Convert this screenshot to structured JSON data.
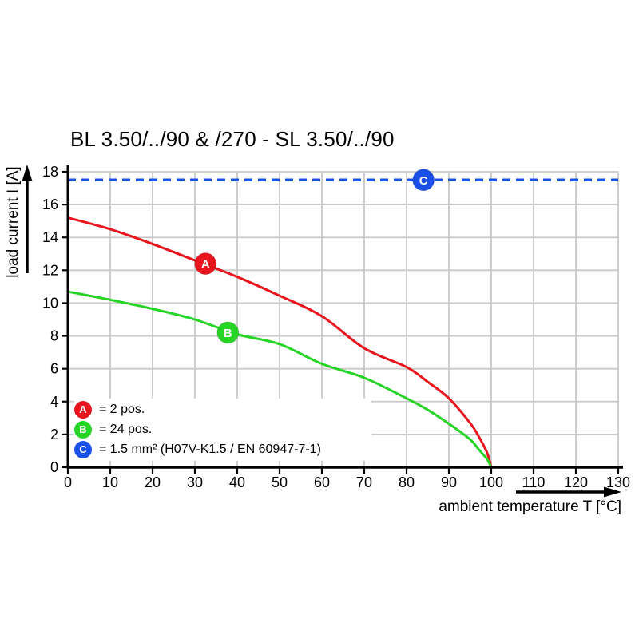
{
  "page": {
    "background": "#ffffff"
  },
  "chart_data": {
    "type": "line",
    "title": "BL 3.50/../90 & /270 - SL 3.50/../90",
    "xlabel": "ambient temperature T [°C]",
    "ylabel": "load current I [A]",
    "xlim": [
      0,
      130
    ],
    "ylim": [
      0,
      18
    ],
    "xticks": [
      0,
      10,
      20,
      30,
      40,
      50,
      60,
      70,
      80,
      90,
      100,
      110,
      120,
      130
    ],
    "yticks": [
      0,
      2,
      4,
      6,
      8,
      10,
      12,
      14,
      16,
      18
    ],
    "grid": true,
    "colors": {
      "grid": "#c9c9c9",
      "axis": "#000000",
      "red": "#e8141e",
      "green": "#26d526",
      "blue": "#1a50e8"
    },
    "series": [
      {
        "id": "A",
        "label": "2 pos.",
        "color": "#e8141e",
        "line_style": "solid",
        "x": [
          0,
          10,
          20,
          30,
          40,
          50,
          60,
          70,
          80,
          85,
          90,
          95,
          97,
          99,
          100
        ],
        "y": [
          15.2,
          14.5,
          13.6,
          12.6,
          11.6,
          10.45,
          9.2,
          7.25,
          6.1,
          5.2,
          4.2,
          2.7,
          1.9,
          0.9,
          0
        ],
        "marker": {
          "letter": "A",
          "x": 32.5,
          "y": 12.4
        }
      },
      {
        "id": "B",
        "label": "24 pos.",
        "color": "#26d526",
        "line_style": "solid",
        "x": [
          0,
          10,
          20,
          30,
          40,
          50,
          60,
          70,
          80,
          85,
          90,
          95,
          97,
          99,
          100
        ],
        "y": [
          10.7,
          10.2,
          9.65,
          9.0,
          8.1,
          7.5,
          6.3,
          5.45,
          4.2,
          3.5,
          2.65,
          1.7,
          1.1,
          0.5,
          0
        ],
        "marker": {
          "letter": "B",
          "x": 37.8,
          "y": 8.2
        }
      },
      {
        "id": "C",
        "label": "1.5 mm² (H07V-K1.5 / EN 60947-7-1)",
        "color": "#1a50e8",
        "line_style": "dashed",
        "x": [
          0,
          130
        ],
        "y": [
          17.5,
          17.5
        ],
        "marker": {
          "letter": "C",
          "x": 84,
          "y": 17.5
        }
      }
    ],
    "legend": {
      "position": "lower-left",
      "entries": [
        {
          "letter": "A",
          "color": "#e8141e",
          "text": "= 2 pos."
        },
        {
          "letter": "B",
          "color": "#26d526",
          "text": "= 24 pos."
        },
        {
          "letter": "C",
          "color": "#1a50e8",
          "text": "= 1.5 mm² (H07V-K1.5 / EN 60947-7-1)"
        }
      ]
    }
  }
}
